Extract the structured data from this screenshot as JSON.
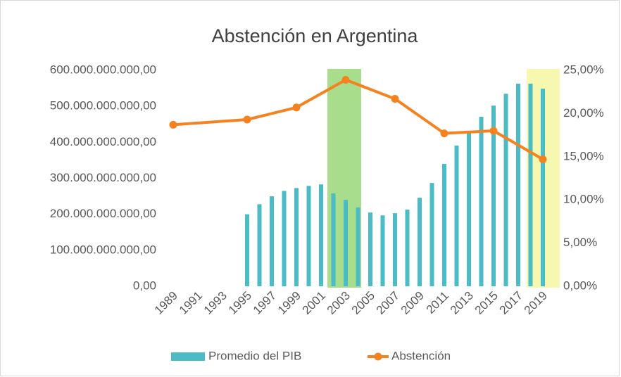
{
  "chart_data": {
    "type": "bar",
    "title": "Abstención en Argentina",
    "categories": [
      "1989",
      null,
      "1991",
      null,
      "1993",
      null,
      "1995",
      null,
      "1997",
      null,
      "1999",
      null,
      "2001",
      null,
      "2003",
      null,
      "2005",
      null,
      "2007",
      null,
      "2009",
      null,
      "2011",
      null,
      "2013",
      null,
      "2015",
      null,
      "2017",
      null,
      "2019"
    ],
    "series": [
      {
        "name": "Promedio del PIB",
        "color": "#4bbcc6",
        "values": [
          null,
          null,
          null,
          null,
          null,
          null,
          200000000000,
          228000000000,
          250000000000,
          265000000000,
          273000000000,
          279000000000,
          283000000000,
          258000000000,
          240000000000,
          219000000000,
          205000000000,
          197000000000,
          203000000000,
          213000000000,
          246000000000,
          287000000000,
          340000000000,
          391000000000,
          430000000000,
          471000000000,
          502000000000,
          535000000000,
          563000000000,
          563000000000,
          549000000000
        ]
      },
      {
        "name": "Abstención",
        "color": "#f5821f",
        "type": "line",
        "axis": "y2",
        "x": [
          "1989",
          "1995",
          "1999",
          "2003",
          "2007",
          "2011",
          "2015",
          "2019"
        ],
        "values": [
          18.7,
          19.3,
          20.7,
          23.9,
          21.7,
          17.7,
          18.0,
          14.7
        ]
      }
    ],
    "ylim": [
      0,
      600000000000
    ],
    "yticks": [
      {
        "value": 0,
        "label": "0,00"
      },
      {
        "value": 100000000000,
        "label": "100.000.000.000,00"
      },
      {
        "value": 200000000000,
        "label": "200.000.000.000,00"
      },
      {
        "value": 300000000000,
        "label": "300.000.000.000,00"
      },
      {
        "value": 400000000000,
        "label": "400.000.000.000,00"
      },
      {
        "value": 500000000000,
        "label": "500.000.000.000,00"
      },
      {
        "value": 600000000000,
        "label": "600.000.000.000,00"
      }
    ],
    "y2lim": [
      0,
      25
    ],
    "y2ticks": [
      {
        "value": 0,
        "label": "0,00%"
      },
      {
        "value": 5,
        "label": "5,00%"
      },
      {
        "value": 10,
        "label": "10,00%"
      },
      {
        "value": 15,
        "label": "15,00%"
      },
      {
        "value": 20,
        "label": "20,00%"
      },
      {
        "value": 25,
        "label": "25,00%"
      }
    ],
    "legend": "bottom"
  }
}
